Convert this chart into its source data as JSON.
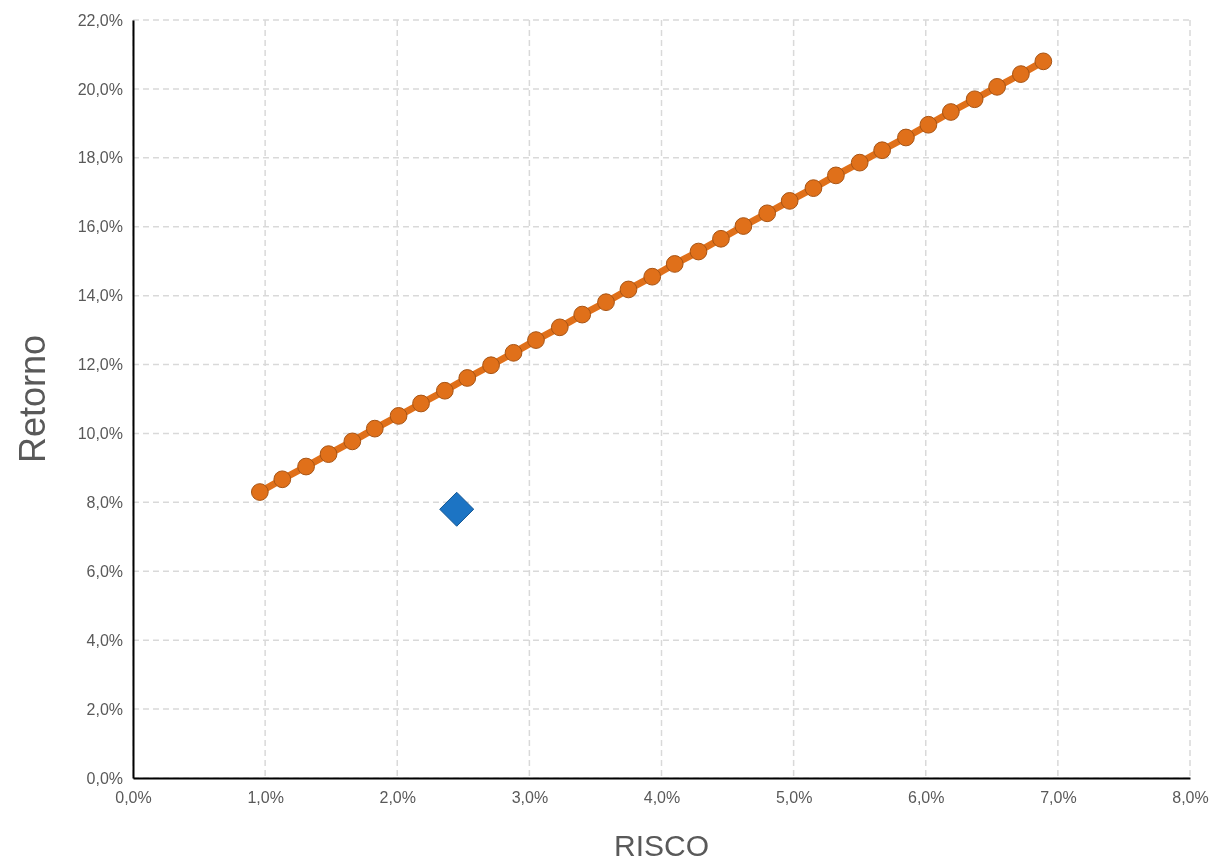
{
  "chart_data": {
    "type": "line",
    "xlabel": "RISCO",
    "ylabel": "Retorno",
    "xlim": [
      0,
      8
    ],
    "ylim": [
      0,
      22
    ],
    "xticks": [
      {
        "value": 0,
        "label": "0,0%"
      },
      {
        "value": 1,
        "label": "1,0%"
      },
      {
        "value": 2,
        "label": "2,0%"
      },
      {
        "value": 3,
        "label": "3,0%"
      },
      {
        "value": 4,
        "label": "4,0%"
      },
      {
        "value": 5,
        "label": "5,0%"
      },
      {
        "value": 6,
        "label": "6,0%"
      },
      {
        "value": 7,
        "label": "7,0%"
      },
      {
        "value": 8,
        "label": "8,0%"
      }
    ],
    "yticks": [
      {
        "value": 0,
        "label": "0,0%"
      },
      {
        "value": 2,
        "label": "2,0%"
      },
      {
        "value": 4,
        "label": "4,0%"
      },
      {
        "value": 6,
        "label": "6,0%"
      },
      {
        "value": 8,
        "label": "8,0%"
      },
      {
        "value": 10,
        "label": "10,0%"
      },
      {
        "value": 12,
        "label": "12,0%"
      },
      {
        "value": 14,
        "label": "14,0%"
      },
      {
        "value": 16,
        "label": "16,0%"
      },
      {
        "value": 18,
        "label": "18,0%"
      },
      {
        "value": 20,
        "label": "20,0%"
      },
      {
        "value": 22,
        "label": "22,0%"
      }
    ],
    "grid": true,
    "series": [
      {
        "color": "#e0701a",
        "marker": "circle",
        "x": [
          0.96,
          1.13,
          1.31,
          1.48,
          1.66,
          1.83,
          2.01,
          2.18,
          2.36,
          2.53,
          2.71,
          2.88,
          3.05,
          3.23,
          3.4,
          3.58,
          3.75,
          3.93,
          4.1,
          4.28,
          4.45,
          4.62,
          4.8,
          4.97,
          5.15,
          5.32,
          5.5,
          5.67,
          5.85,
          6.02,
          6.19,
          6.37,
          6.54,
          6.72,
          6.89
        ],
        "values": [
          8.3,
          8.67,
          9.04,
          9.4,
          9.77,
          10.14,
          10.51,
          10.87,
          11.24,
          11.61,
          11.98,
          12.34,
          12.71,
          13.08,
          13.45,
          13.81,
          14.18,
          14.55,
          14.92,
          15.28,
          15.65,
          16.02,
          16.39,
          16.75,
          17.12,
          17.49,
          17.86,
          18.22,
          18.59,
          18.96,
          19.33,
          19.7,
          20.06,
          20.43,
          20.8
        ]
      },
      {
        "type": "scatter",
        "color": "#1c74c4",
        "marker": "diamond",
        "x": [
          2.45
        ],
        "values": [
          7.8
        ]
      }
    ]
  }
}
